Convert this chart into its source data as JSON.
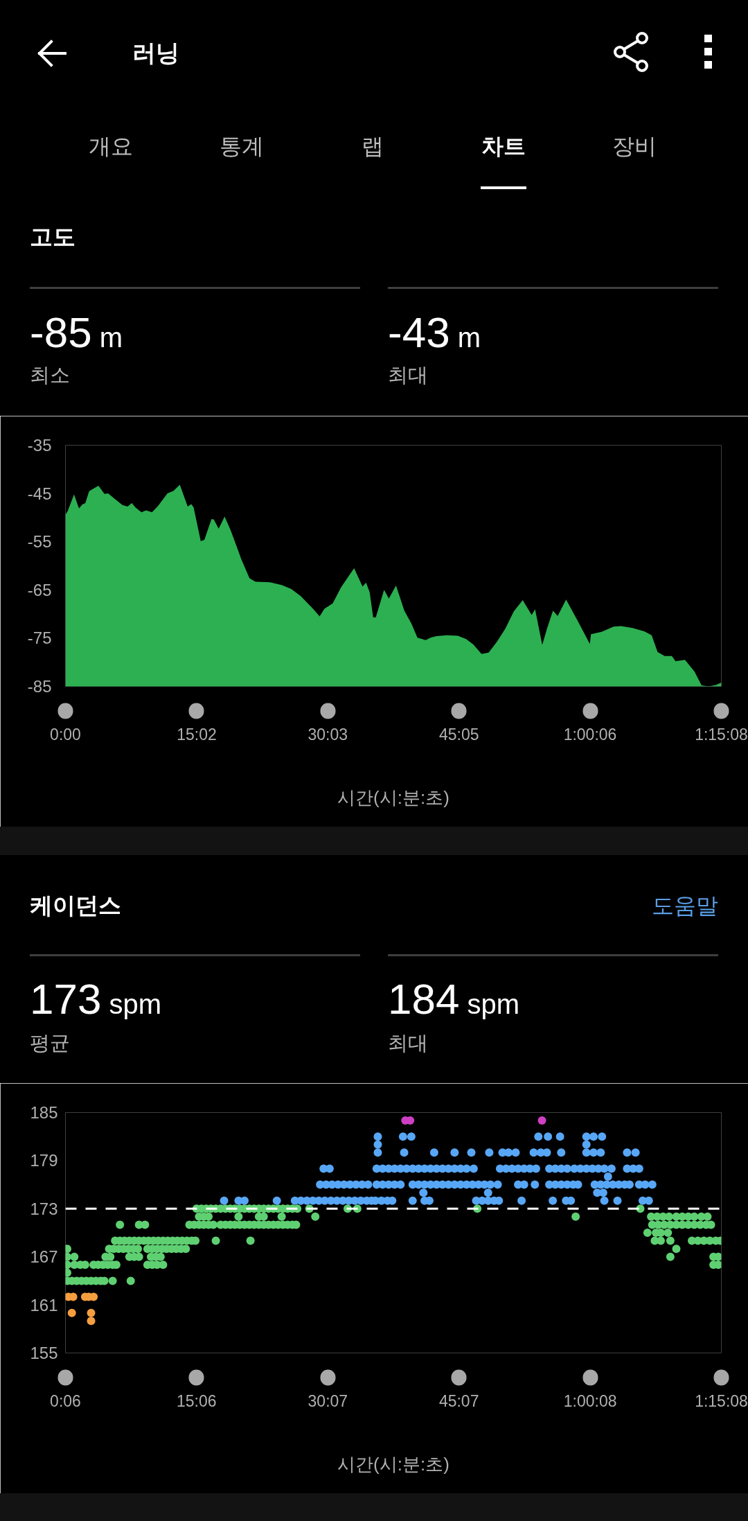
{
  "chart_data": [
    {
      "type": "area",
      "title": "고도",
      "xlabel": "시간(시:분:초)",
      "annotations": [
        "러닝",
        "개요",
        "통계",
        "랩",
        "차트",
        "장비",
        "-85 m",
        "최소",
        "-43 m",
        "최대"
      ],
      "x": [
        0,
        15,
        59,
        93,
        116,
        137,
        162,
        181,
        227,
        268,
        293,
        342,
        391,
        427,
        456,
        481,
        522,
        554,
        595,
        636,
        701,
        742,
        786,
        816,
        840,
        865,
        881,
        930,
        955,
        1004,
        1020,
        1053,
        1094,
        1135,
        1184,
        1208,
        1265,
        1306,
        1404,
        1486,
        1552,
        1617,
        1698,
        1747,
        1780,
        1837,
        1894,
        1984,
        2042,
        2066,
        2091,
        2115,
        2133,
        2190,
        2223,
        2272,
        2329,
        2378,
        2419,
        2476,
        2509,
        2550,
        2623,
        2697,
        2754,
        2803,
        2860,
        2909,
        2967,
        3024,
        3081,
        3143,
        3204,
        3228,
        3277,
        3310,
        3351,
        3383,
        3441,
        3522,
        3604,
        3612,
        3686,
        3768,
        3817,
        3898,
        3980,
        4029,
        4070,
        4119,
        4168,
        4193,
        4258,
        4323,
        4372,
        4421,
        4471,
        4508
      ],
      "values": [
        -49.4,
        -48.7,
        -45.2,
        -48.1,
        -47.3,
        -47.0,
        -44.6,
        -44.2,
        -43.4,
        -45.1,
        -45.0,
        -46.2,
        -47.4,
        -47.7,
        -47.0,
        -47.9,
        -48.9,
        -48.5,
        -48.9,
        -47.6,
        -45.0,
        -44.5,
        -43.2,
        -45.7,
        -47.7,
        -47.2,
        -47.9,
        -54.9,
        -54.6,
        -50.3,
        -50.4,
        -52.3,
        -49.8,
        -52.6,
        -56.6,
        -58.6,
        -62.6,
        -63.3,
        -63.4,
        -64.0,
        -64.8,
        -66.3,
        -68.8,
        -70.5,
        -68.9,
        -67.8,
        -64.5,
        -60.5,
        -64.3,
        -63.5,
        -65.5,
        -70.7,
        -70.7,
        -65.0,
        -66.8,
        -64.1,
        -69.3,
        -72.0,
        -74.9,
        -75.4,
        -74.9,
        -74.6,
        -74.4,
        -74.5,
        -75.2,
        -76.3,
        -78.3,
        -78.0,
        -75.7,
        -73.0,
        -69.5,
        -67.1,
        -70.2,
        -69.0,
        -76.4,
        -73.0,
        -69.3,
        -70.4,
        -67.0,
        -71.5,
        -76.2,
        -74.2,
        -73.7,
        -72.6,
        -72.5,
        -72.9,
        -73.6,
        -74.4,
        -77.9,
        -78.7,
        -78.7,
        -79.8,
        -79.5,
        -81.9,
        -84.8,
        -85.0,
        -84.7,
        -84.2
      ],
      "color": "#2db052",
      "xlim": [
        0,
        4508
      ],
      "xticks": [
        {
          "value": 0,
          "label": "0:00"
        },
        {
          "value": 902,
          "label": "15:02"
        },
        {
          "value": 1803,
          "label": "30:03"
        },
        {
          "value": 2705,
          "label": "45:05"
        },
        {
          "value": 3606,
          "label": "1:00:06"
        },
        {
          "value": 4508,
          "label": "1:15:08"
        }
      ],
      "ylim": [
        -85,
        -35
      ],
      "yticks": [
        -85,
        -75,
        -65,
        -55,
        -45,
        -35
      ],
      "grid": false
    },
    {
      "type": "scatter",
      "title": "케이던스",
      "xlabel": "시간(시:분:초)",
      "annotations": [
        "도움말",
        "173 spm",
        "평균",
        "184 spm",
        "최대"
      ],
      "marker": "circle",
      "series": [
        {
          "color": "#f59e3f",
          "x": [
            26,
            59,
            141,
            166,
            199,
            50,
            182,
            182
          ],
          "values": [
            162,
            162,
            162,
            162,
            162,
            160,
            160,
            159
          ]
        },
        {
          "color": "#5fd072",
          "x": [
            18,
            306,
            338,
            371,
            404,
            437,
            470,
            503,
            569,
            602,
            635,
            668,
            700,
            733,
            766,
            799,
            832,
            4199,
            18,
            67,
            281,
            314,
            445,
            478,
            511,
            593,
            626,
            659,
            4158,
            4454,
            4487,
            18,
            67,
            108,
            141,
            199,
            231,
            264,
            297,
            330,
            355,
            569,
            602,
            635,
            676,
            4454,
            4487,
            18,
            18,
            50,
            83,
            116,
            149,
            182,
            215,
            248,
            273,
            330,
            454,
            347,
            380,
            412,
            445,
            478,
            511,
            544,
            577,
            610,
            643,
            676,
            709,
            742,
            774,
            807,
            840,
            873,
            898,
            1038,
            1276,
            4051,
            4092,
            4158,
            4306,
            4347,
            4388,
            4429,
            4470,
            4503,
            4001,
            4059,
            4092,
            4141,
            380,
            511,
            552,
            857,
            890,
            923,
            955,
            988,
            1021,
            1071,
            1104,
            1137,
            1169,
            1202,
            1235,
            1268,
            1301,
            1334,
            1367,
            1400,
            1433,
            1466,
            1499,
            1531,
            1564,
            1589,
            4034,
            4075,
            4116,
            4158,
            4199,
            4240,
            4281,
            4322,
            4363,
            4404,
            4437,
            923,
            955,
            988,
            1194,
            1334,
            1367,
            1490,
            1721,
            3508,
            4026,
            4067,
            4108,
            4149,
            4199,
            4240,
            4281,
            4322,
            4371,
            4413,
            906,
            939,
            972,
            1005,
            1038,
            1071,
            1104,
            1137,
            1169,
            1202,
            1235,
            1268,
            1301,
            1334,
            1367,
            1400,
            1433,
            1466,
            1499,
            1531,
            1564,
            1597,
            1680,
            1943,
            2009,
            2833,
            3952
          ],
          "values": [
            168,
            168,
            168,
            168,
            168,
            168,
            168,
            168,
            168,
            168,
            168,
            168,
            168,
            168,
            168,
            168,
            168,
            168,
            167,
            167,
            167,
            167,
            167,
            167,
            167,
            167,
            167,
            167,
            167,
            167,
            167,
            166,
            166,
            166,
            166,
            166,
            166,
            166,
            166,
            166,
            166,
            166,
            166,
            166,
            166,
            166,
            166,
            165,
            164,
            164,
            164,
            164,
            164,
            164,
            164,
            164,
            164,
            164,
            164,
            169,
            169,
            169,
            169,
            169,
            169,
            169,
            169,
            169,
            169,
            169,
            169,
            169,
            169,
            169,
            169,
            169,
            169,
            169,
            169,
            169,
            169,
            169,
            169,
            169,
            169,
            169,
            169,
            169,
            170,
            170,
            170,
            170,
            171,
            171,
            171,
            171,
            171,
            171,
            171,
            171,
            171,
            171,
            171,
            171,
            171,
            171,
            171,
            171,
            171,
            171,
            171,
            171,
            171,
            171,
            171,
            171,
            171,
            171,
            171,
            171,
            171,
            171,
            171,
            171,
            171,
            171,
            171,
            171,
            171,
            172,
            172,
            172,
            172,
            172,
            172,
            172,
            172,
            172,
            172,
            172,
            172,
            172,
            172,
            172,
            172,
            172,
            172,
            172,
            173,
            173,
            173,
            173,
            173,
            173,
            173,
            173,
            173,
            173,
            173,
            173,
            173,
            173,
            173,
            173,
            173,
            173,
            173,
            173,
            173,
            173,
            173,
            173,
            173,
            173,
            173
          ]
        },
        {
          "color": "#58a7f6",
          "x": [
            1095,
            1194,
            1235,
            1457,
            1581,
            1622,
            1663,
            1704,
            1745,
            1786,
            1828,
            1869,
            1910,
            1951,
            1992,
            2033,
            2074,
            2107,
            2133,
            2175,
            2216,
            2249,
            2389,
            2471,
            2504,
            2825,
            2866,
            2907,
            2948,
            2981,
            3137,
            3351,
            3442,
            3475,
            3705,
            3795,
            3968,
            4010,
            2463,
            2907,
            3656,
            3697,
            1754,
            1795,
            1836,
            1877,
            1918,
            1959,
            2000,
            2042,
            2083,
            2142,
            2183,
            2224,
            2265,
            2306,
            2389,
            2430,
            2471,
            2512,
            2553,
            2594,
            2635,
            2677,
            2718,
            2759,
            2800,
            2841,
            2882,
            2923,
            2973,
            3113,
            3154,
            3228,
            3327,
            3368,
            3409,
            3450,
            3491,
            3524,
            3639,
            3680,
            3721,
            3763,
            3804,
            3845,
            3878,
            3944,
            3985,
            4034,
            3730,
            1778,
            1819,
            2142,
            2183,
            2224,
            2265,
            2306,
            2347,
            2389,
            2430,
            2471,
            2512,
            2553,
            2594,
            2635,
            2677,
            2718,
            2759,
            2808,
            2989,
            3030,
            3071,
            3113,
            3154,
            3195,
            3236,
            3327,
            3368,
            3409,
            3450,
            3499,
            3540,
            3582,
            3623,
            3664,
            3705,
            3754,
            3861,
            3903,
            3944,
            2150,
            2331,
            2537,
            2677,
            2792,
            2915,
            3006,
            3047,
            3096,
            3220,
            3269,
            3310,
            3409,
            3582,
            3631,
            3680,
            3861,
            3919,
            2150,
            3582,
            2150,
            2323,
            2380,
            3252,
            3318,
            3401,
            3582,
            3631,
            3689
          ],
          "values": [
            174,
            174,
            174,
            174,
            174,
            174,
            174,
            174,
            174,
            174,
            174,
            174,
            174,
            174,
            174,
            174,
            174,
            174,
            174,
            174,
            174,
            174,
            174,
            174,
            174,
            174,
            174,
            174,
            174,
            174,
            174,
            174,
            174,
            174,
            174,
            174,
            174,
            174,
            175,
            175,
            175,
            175,
            176,
            176,
            176,
            176,
            176,
            176,
            176,
            176,
            176,
            176,
            176,
            176,
            176,
            176,
            176,
            176,
            176,
            176,
            176,
            176,
            176,
            176,
            176,
            176,
            176,
            176,
            176,
            176,
            176,
            176,
            176,
            176,
            176,
            176,
            176,
            176,
            176,
            176,
            176,
            176,
            176,
            176,
            176,
            176,
            176,
            176,
            176,
            176,
            177,
            178,
            178,
            178,
            178,
            178,
            178,
            178,
            178,
            178,
            178,
            178,
            178,
            178,
            178,
            178,
            178,
            178,
            178,
            178,
            178,
            178,
            178,
            178,
            178,
            178,
            178,
            178,
            178,
            178,
            178,
            178,
            178,
            178,
            178,
            178,
            178,
            178,
            178,
            178,
            178,
            180,
            180,
            180,
            180,
            180,
            180,
            180,
            180,
            180,
            180,
            180,
            180,
            180,
            180,
            180,
            180,
            180,
            180,
            181,
            181,
            182,
            182,
            182,
            182,
            182,
            182,
            182,
            182,
            182
          ]
        },
        {
          "color": "#cf3fc4",
          "x": [
            2339,
            2372,
            3277
          ],
          "values": [
            184,
            184,
            184
          ]
        }
      ],
      "ref_lines": [
        {
          "axis": "y",
          "value": 173,
          "color": "#ffffff",
          "line_style": "dashed"
        }
      ],
      "xlim": [
        6,
        4508
      ],
      "xticks": [
        {
          "value": 6,
          "label": "0:06"
        },
        {
          "value": 906,
          "label": "15:06"
        },
        {
          "value": 1807,
          "label": "30:07"
        },
        {
          "value": 2707,
          "label": "45:07"
        },
        {
          "value": 3608,
          "label": "1:00:08"
        },
        {
          "value": 4508,
          "label": "1:15:08"
        }
      ],
      "ylim": [
        155,
        185
      ],
      "yticks": [
        155,
        161,
        167,
        173,
        179,
        185
      ],
      "grid": false
    }
  ]
}
